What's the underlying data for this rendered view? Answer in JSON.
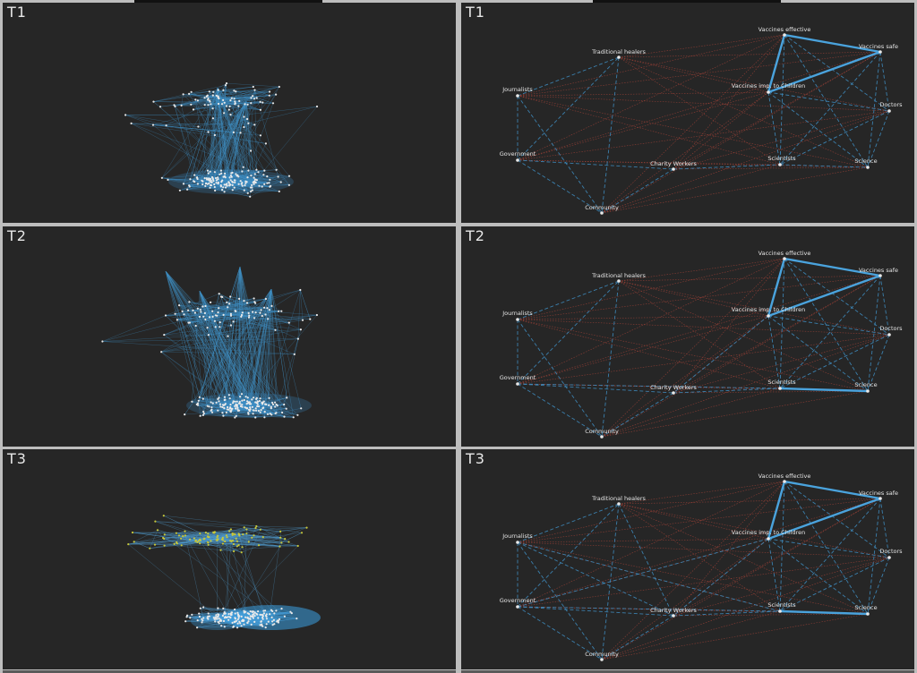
{
  "panels": [
    {
      "id": "left-t1",
      "label": "T1",
      "kind": "dense",
      "style": "blue"
    },
    {
      "id": "left-t2",
      "label": "T2",
      "kind": "dense",
      "style": "blue-fan"
    },
    {
      "id": "left-t3",
      "label": "T3",
      "kind": "dense",
      "style": "two-cluster"
    },
    {
      "id": "right-t1",
      "label": "T1",
      "kind": "topic",
      "variant": 1
    },
    {
      "id": "right-t2",
      "label": "T2",
      "kind": "topic",
      "variant": 2
    },
    {
      "id": "right-t3",
      "label": "T3",
      "kind": "topic",
      "variant": 3
    }
  ],
  "topic_nodes": [
    {
      "key": "vax_eff",
      "label": "Vaccines effective"
    },
    {
      "key": "vax_safe",
      "label": "Vaccines safe"
    },
    {
      "key": "trad",
      "label": "Traditional healers"
    },
    {
      "key": "journ",
      "label": "Journalists"
    },
    {
      "key": "vax_child",
      "label": "Vaccines imp. to Children"
    },
    {
      "key": "doctors",
      "label": "Doctors"
    },
    {
      "key": "gov",
      "label": "Government"
    },
    {
      "key": "charity",
      "label": "Charity Workers"
    },
    {
      "key": "scientists",
      "label": "Scientists"
    },
    {
      "key": "science",
      "label": "Science"
    },
    {
      "key": "community",
      "label": "Community"
    }
  ],
  "colors": {
    "background": "#262626",
    "blue_edge": "#3f8fc4",
    "blue_strong": "#4aa3dd",
    "red_edge": "#b0453a",
    "yellow_node": "#c8c83a",
    "white_node": "#e9e9e9"
  }
}
